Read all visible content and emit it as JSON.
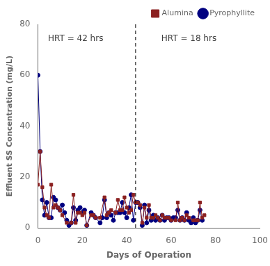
{
  "chart_data": {
    "type": "line",
    "xlabel": "Days of Operation",
    "ylabel": "Effluent SS Concentration (mg/L)",
    "series": [
      {
        "name": "Alumina",
        "color": "#8B2020",
        "marker": "square",
        "x": [
          0,
          1,
          2,
          3,
          4,
          5,
          6,
          7,
          8,
          9,
          10,
          11,
          13,
          15,
          16,
          17,
          18,
          19,
          20,
          21,
          22,
          24,
          25,
          26,
          28,
          30,
          31,
          32,
          33,
          35,
          36,
          37,
          38,
          39,
          40,
          41,
          42,
          43,
          44,
          45,
          46,
          47,
          48,
          49,
          50,
          51,
          52,
          53,
          54,
          55,
          56,
          57,
          58,
          59,
          60,
          62,
          63,
          64,
          65,
          66,
          67,
          68,
          70,
          71,
          72,
          73,
          74,
          75
        ],
        "values": [
          17,
          30,
          16,
          8,
          5,
          4,
          17,
          8,
          9,
          8,
          7,
          5,
          2,
          2,
          13,
          2,
          6,
          6,
          5,
          6,
          1,
          5,
          5,
          4,
          4,
          12,
          5,
          6,
          7,
          6,
          11,
          7,
          7,
          12,
          8,
          6,
          7,
          13,
          10,
          10,
          9,
          2,
          8,
          4,
          9,
          4,
          4,
          5,
          4,
          3,
          5,
          4,
          4,
          4,
          3,
          3,
          10,
          3,
          4,
          3,
          5,
          4,
          3,
          3,
          3,
          10,
          4,
          5
        ]
      },
      {
        "name": "Pyrophyllite",
        "color": "#000080",
        "marker": "circle",
        "x": [
          0,
          1,
          2,
          3,
          4,
          5,
          6,
          7,
          8,
          9,
          10,
          11,
          12,
          13,
          14,
          15,
          16,
          17,
          18,
          19,
          20,
          21,
          22,
          24,
          25,
          26,
          28,
          29,
          30,
          31,
          32,
          33,
          34,
          35,
          36,
          37,
          38,
          39,
          40,
          41,
          42,
          43,
          44,
          45,
          46,
          47,
          48,
          49,
          50,
          51,
          52,
          53,
          54,
          55,
          56,
          57,
          58,
          59,
          60,
          61,
          62,
          63,
          64,
          65,
          66,
          67,
          68,
          69,
          70,
          71,
          72,
          73,
          74
        ],
        "values": [
          60,
          30,
          11,
          5,
          10,
          4,
          4,
          12,
          11,
          8,
          7,
          9,
          6,
          3,
          1,
          2,
          8,
          3,
          7,
          8,
          6,
          7,
          1,
          6,
          5,
          4,
          2,
          4,
          11,
          4,
          6,
          5,
          3,
          6,
          6,
          6,
          10,
          6,
          4,
          8,
          13,
          3,
          10,
          10,
          8,
          1,
          9,
          2,
          7,
          3,
          5,
          3,
          4,
          3,
          5,
          3,
          4,
          4,
          3,
          4,
          4,
          7,
          3,
          4,
          3,
          6,
          3,
          2,
          4,
          2,
          3,
          7,
          3
        ]
      }
    ],
    "vline": 44,
    "annotations": [
      {
        "text": "HRT = 42 hrs",
        "x": 17,
        "y": 76
      },
      {
        "text": "HRT = 18 hrs",
        "x": 68,
        "y": 76
      }
    ],
    "xlim": [
      0,
      100
    ],
    "xticks": [
      0,
      20,
      40,
      60,
      80,
      100
    ],
    "ylim": [
      0,
      80
    ],
    "yticks": [
      0,
      20,
      40,
      60,
      80
    ],
    "grid": false,
    "legend": "upper right"
  }
}
